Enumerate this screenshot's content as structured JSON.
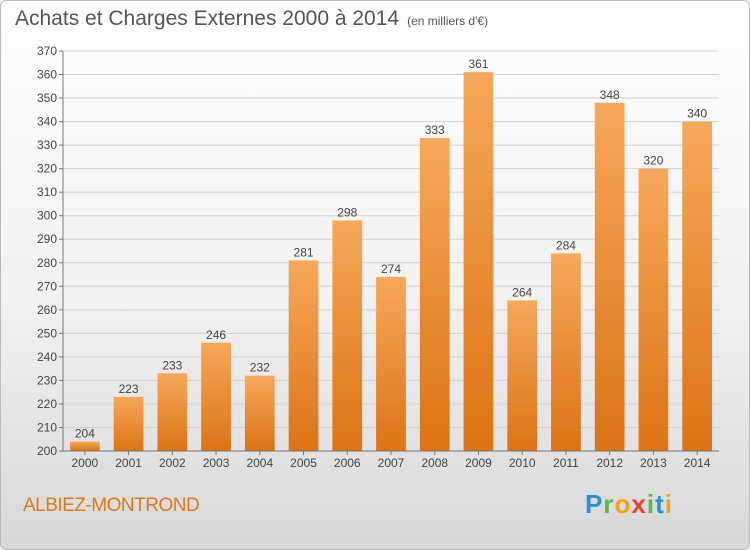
{
  "title": "Achats et Charges Externes 2000 à 2014",
  "subtitle": "(en milliers d'€)",
  "location": "ALBIEZ-MONTROND",
  "logo": {
    "letters": [
      "P",
      "r",
      "o",
      "x",
      "i",
      "t",
      "i"
    ],
    "colors": [
      "#2f8fd6",
      "#5cb84a",
      "#f0a21a",
      "#e24535",
      "#5cb84a",
      "#2f8fd6",
      "#f0a21a"
    ]
  },
  "chart_data": {
    "type": "bar",
    "title": "Achats et Charges Externes 2000 à 2014",
    "subtitle": "(en milliers d'€)",
    "categories": [
      "2000",
      "2001",
      "2002",
      "2003",
      "2004",
      "2005",
      "2006",
      "2007",
      "2008",
      "2009",
      "2010",
      "2011",
      "2012",
      "2013",
      "2014"
    ],
    "values": [
      204,
      223,
      233,
      246,
      232,
      281,
      298,
      274,
      333,
      361,
      264,
      284,
      348,
      320,
      340
    ],
    "ylim": [
      200,
      370
    ],
    "yticks": [
      200,
      210,
      220,
      230,
      240,
      250,
      260,
      270,
      280,
      290,
      300,
      310,
      320,
      330,
      340,
      350,
      360,
      370
    ],
    "grid": true,
    "bar_color": "#f08a24",
    "xlabel": "",
    "ylabel": ""
  }
}
